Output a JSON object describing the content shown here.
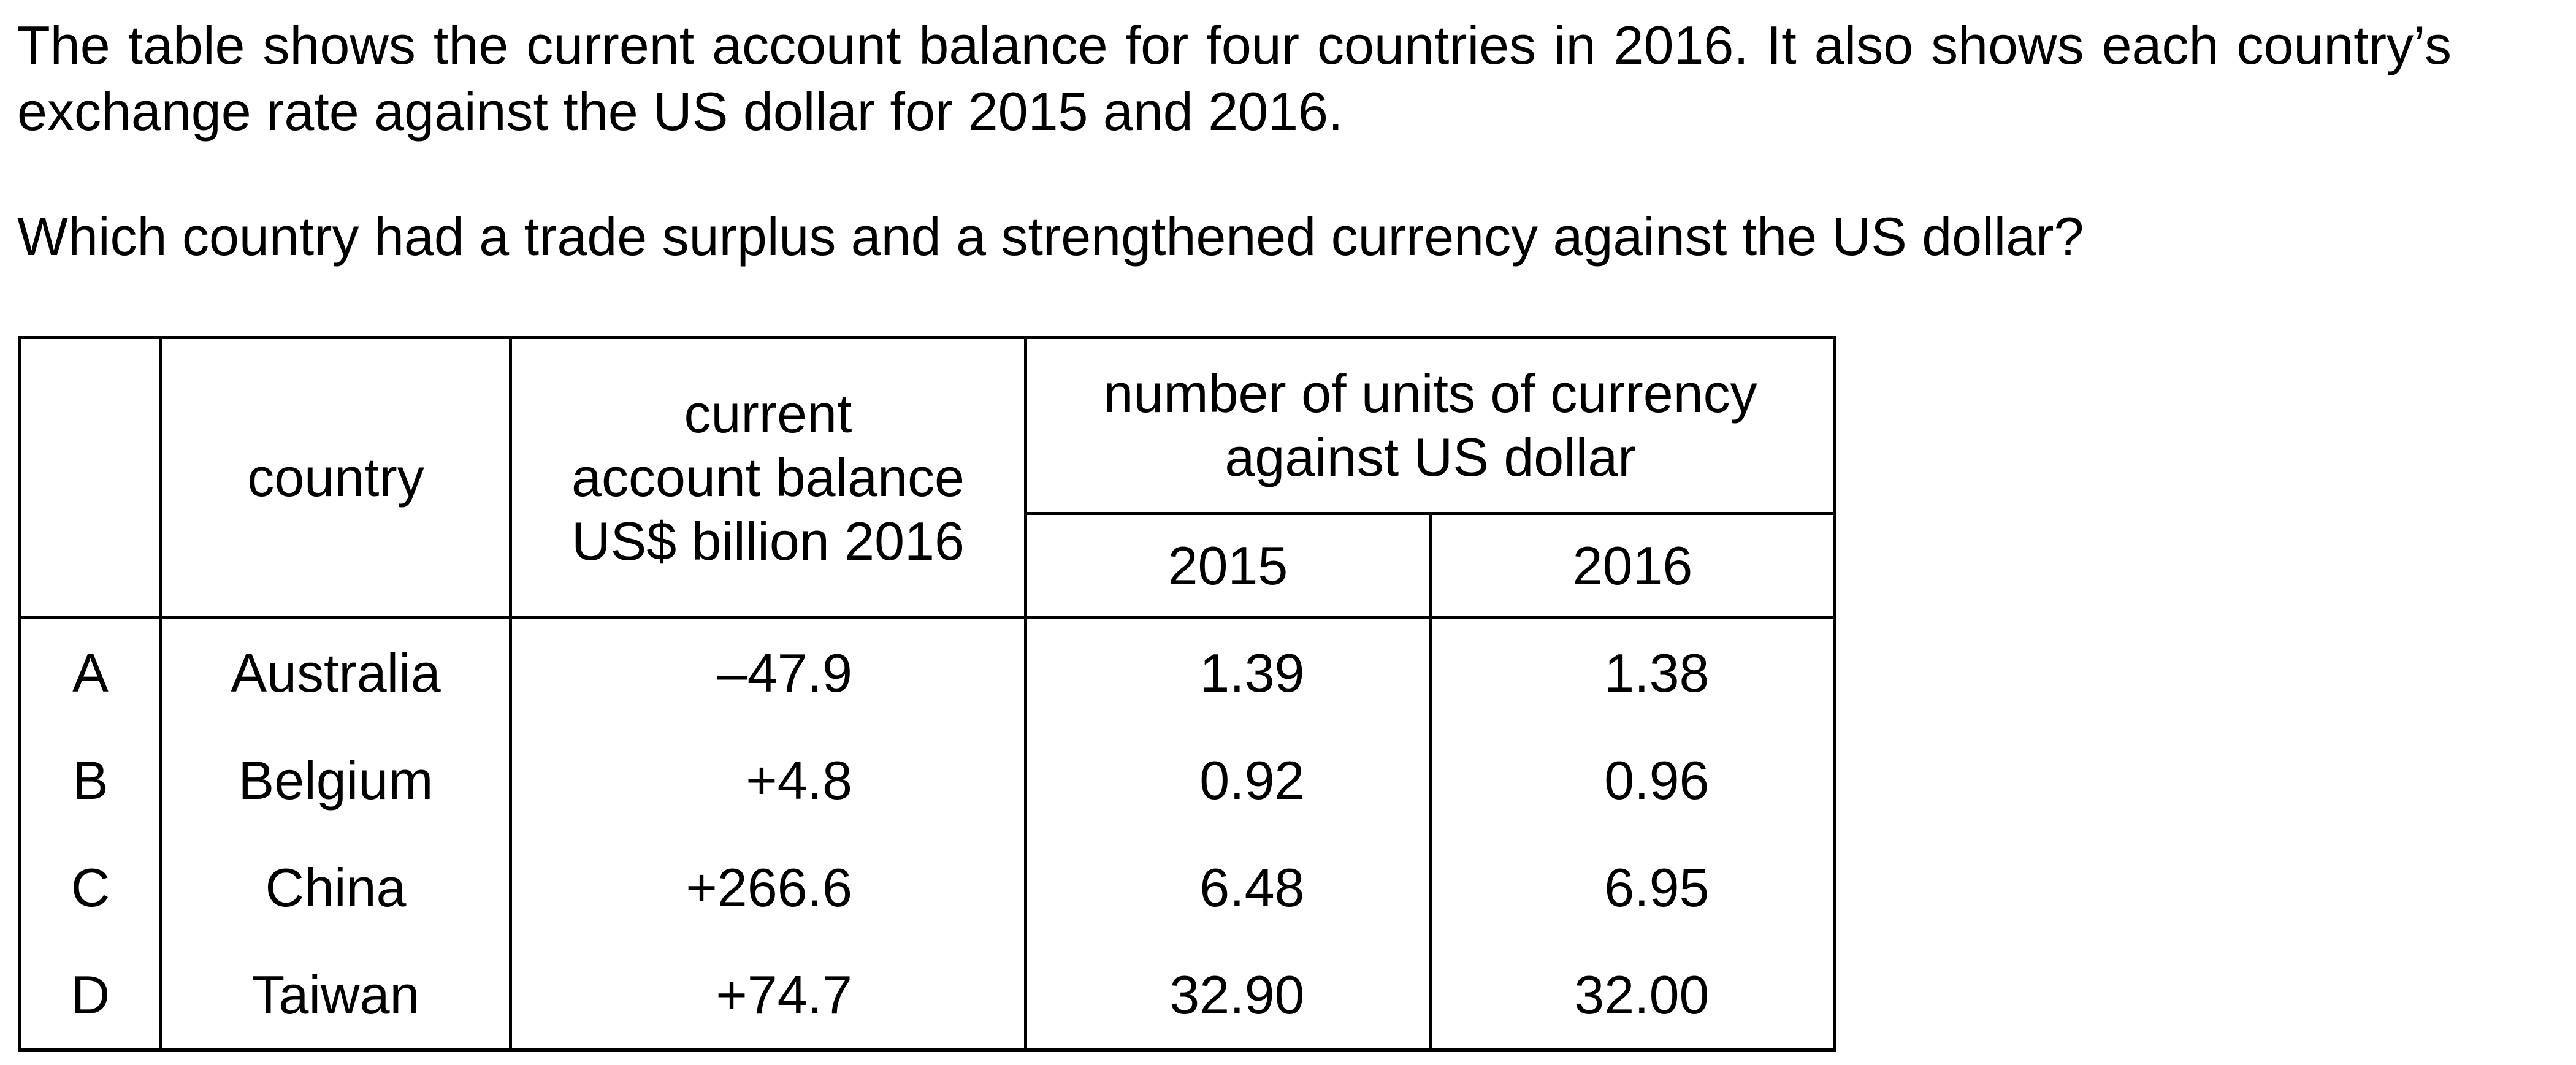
{
  "question": {
    "intro": "The table shows the current account balance for four countries in 2016. It also shows each country’s exchange rate against the US dollar for 2015 and 2016.",
    "prompt": "Which country had a trade surplus and a strengthened currency against the US dollar?"
  },
  "table": {
    "headers": {
      "country": "country",
      "balance_line1": "current",
      "balance_line2": "account balance",
      "balance_line3": "US$ billion 2016",
      "units_line1": "number of units of currency",
      "units_line2": "against US dollar",
      "year_2015": "2015",
      "year_2016": "2016"
    },
    "rows": [
      {
        "option": "A",
        "country": "Australia",
        "balance": "–47.9",
        "rate_2015": "1.39",
        "rate_2016": "1.38"
      },
      {
        "option": "B",
        "country": "Belgium",
        "balance": "+4.8",
        "rate_2015": "0.92",
        "rate_2016": "0.96"
      },
      {
        "option": "C",
        "country": "China",
        "balance": "+266.6",
        "rate_2015": "6.48",
        "rate_2016": "6.95"
      },
      {
        "option": "D",
        "country": "Taiwan",
        "balance": "+74.7",
        "rate_2015": "32.90",
        "rate_2016": "32.00"
      }
    ]
  }
}
